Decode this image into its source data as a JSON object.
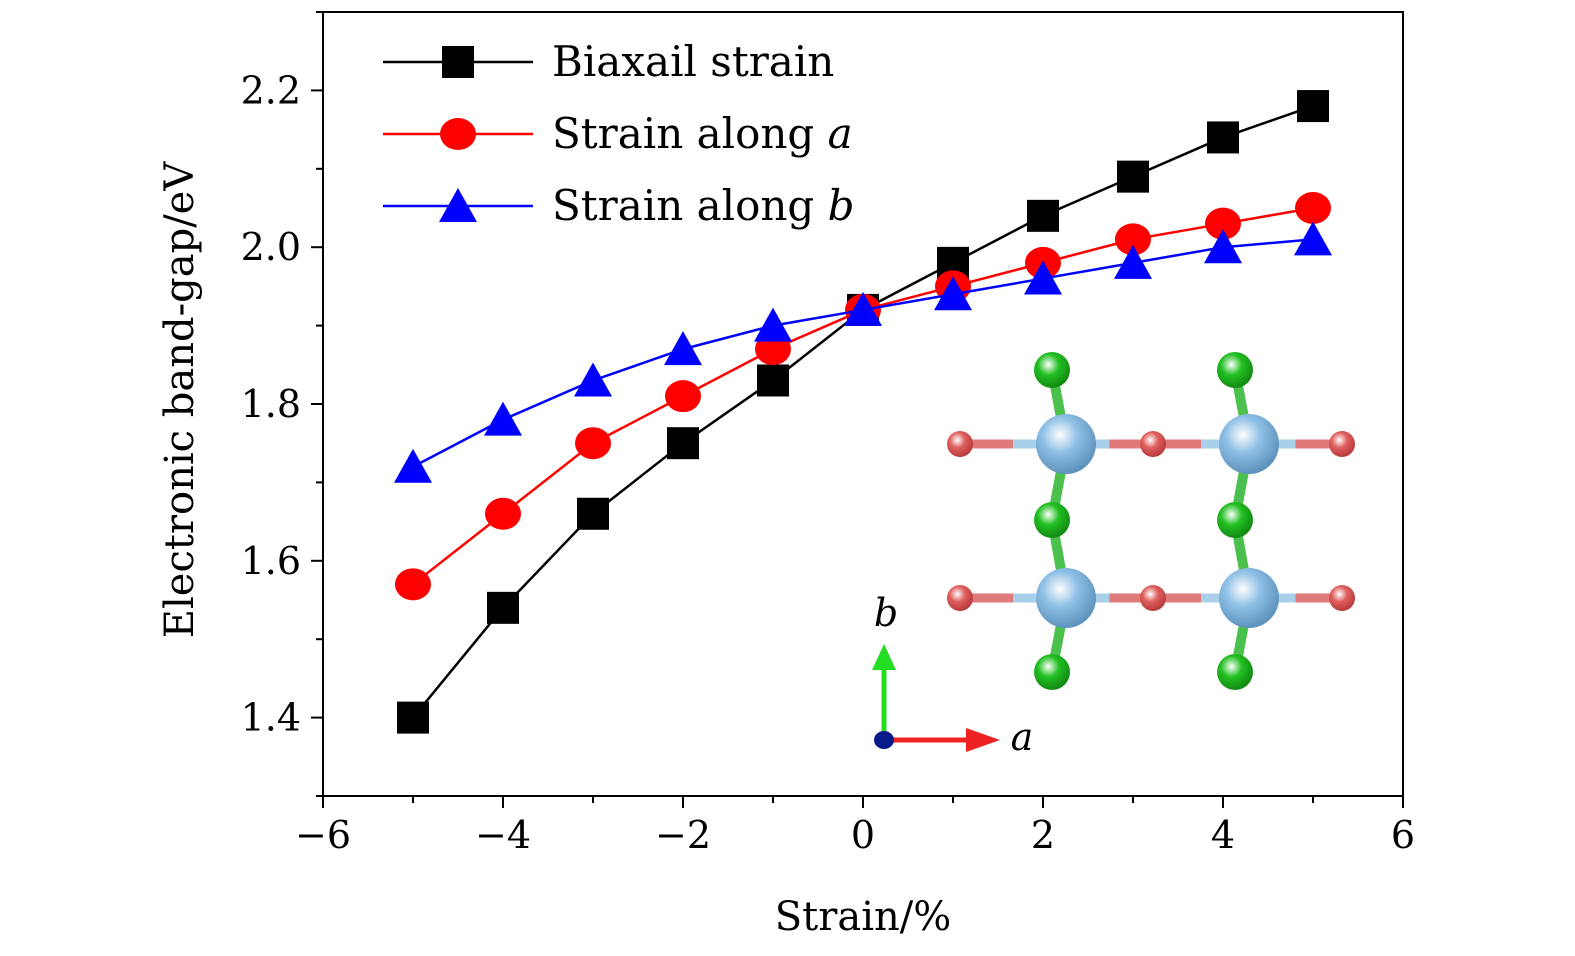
{
  "chart_data": {
    "type": "line",
    "xlabel": "Strain/%",
    "ylabel": "Electronic band-gap/eV",
    "xlim": [
      -6,
      6
    ],
    "ylim": [
      1.3,
      2.3
    ],
    "x_ticks": [
      -6,
      -4,
      -2,
      0,
      2,
      4,
      6
    ],
    "x_tick_labels": [
      "−6",
      "−4",
      "−2",
      "0",
      "2",
      "4",
      "6"
    ],
    "y_ticks": [
      1.4,
      1.6,
      1.8,
      2.0,
      2.2
    ],
    "y_tick_labels": [
      "1.4",
      "1.6",
      "1.8",
      "2.0",
      "2.2"
    ],
    "grid": false,
    "legend_position": "top-left",
    "x": [
      -5,
      -4,
      -3,
      -2,
      -1,
      0,
      1,
      2,
      3,
      4,
      5
    ],
    "series": [
      {
        "name": "Biaxail strain",
        "name_prefix": "Biaxail strain",
        "name_italic": "",
        "marker": "square",
        "color": "#000000",
        "values": [
          1.4,
          1.54,
          1.66,
          1.75,
          1.83,
          1.92,
          1.98,
          2.04,
          2.09,
          2.14,
          2.18
        ]
      },
      {
        "name": "Strain along a",
        "name_prefix": "Strain along ",
        "name_italic": "a",
        "marker": "circle",
        "color": "#ff0000",
        "values": [
          1.57,
          1.66,
          1.75,
          1.81,
          1.87,
          1.92,
          1.95,
          1.98,
          2.01,
          2.03,
          2.05
        ]
      },
      {
        "name": "Strain along b",
        "name_prefix": "Strain along ",
        "name_italic": "b",
        "marker": "triangle",
        "color": "#0000ff",
        "values": [
          1.72,
          1.78,
          1.83,
          1.87,
          1.9,
          1.92,
          1.94,
          1.96,
          1.98,
          2.0,
          2.01
        ]
      }
    ],
    "inset": {
      "axis_b_label": "b",
      "axis_a_label": "a",
      "atom_colors": {
        "large": "#8fc0e6",
        "small": "#e06060",
        "green": "#22c022",
        "bond_blue": "#a8d0ea",
        "bond_red": "#e07a7a",
        "bond_green": "#4cc04c"
      },
      "arrow_colors": {
        "b": "#22dd22",
        "a": "#ee2222",
        "origin": "#0a1a8a"
      }
    }
  }
}
